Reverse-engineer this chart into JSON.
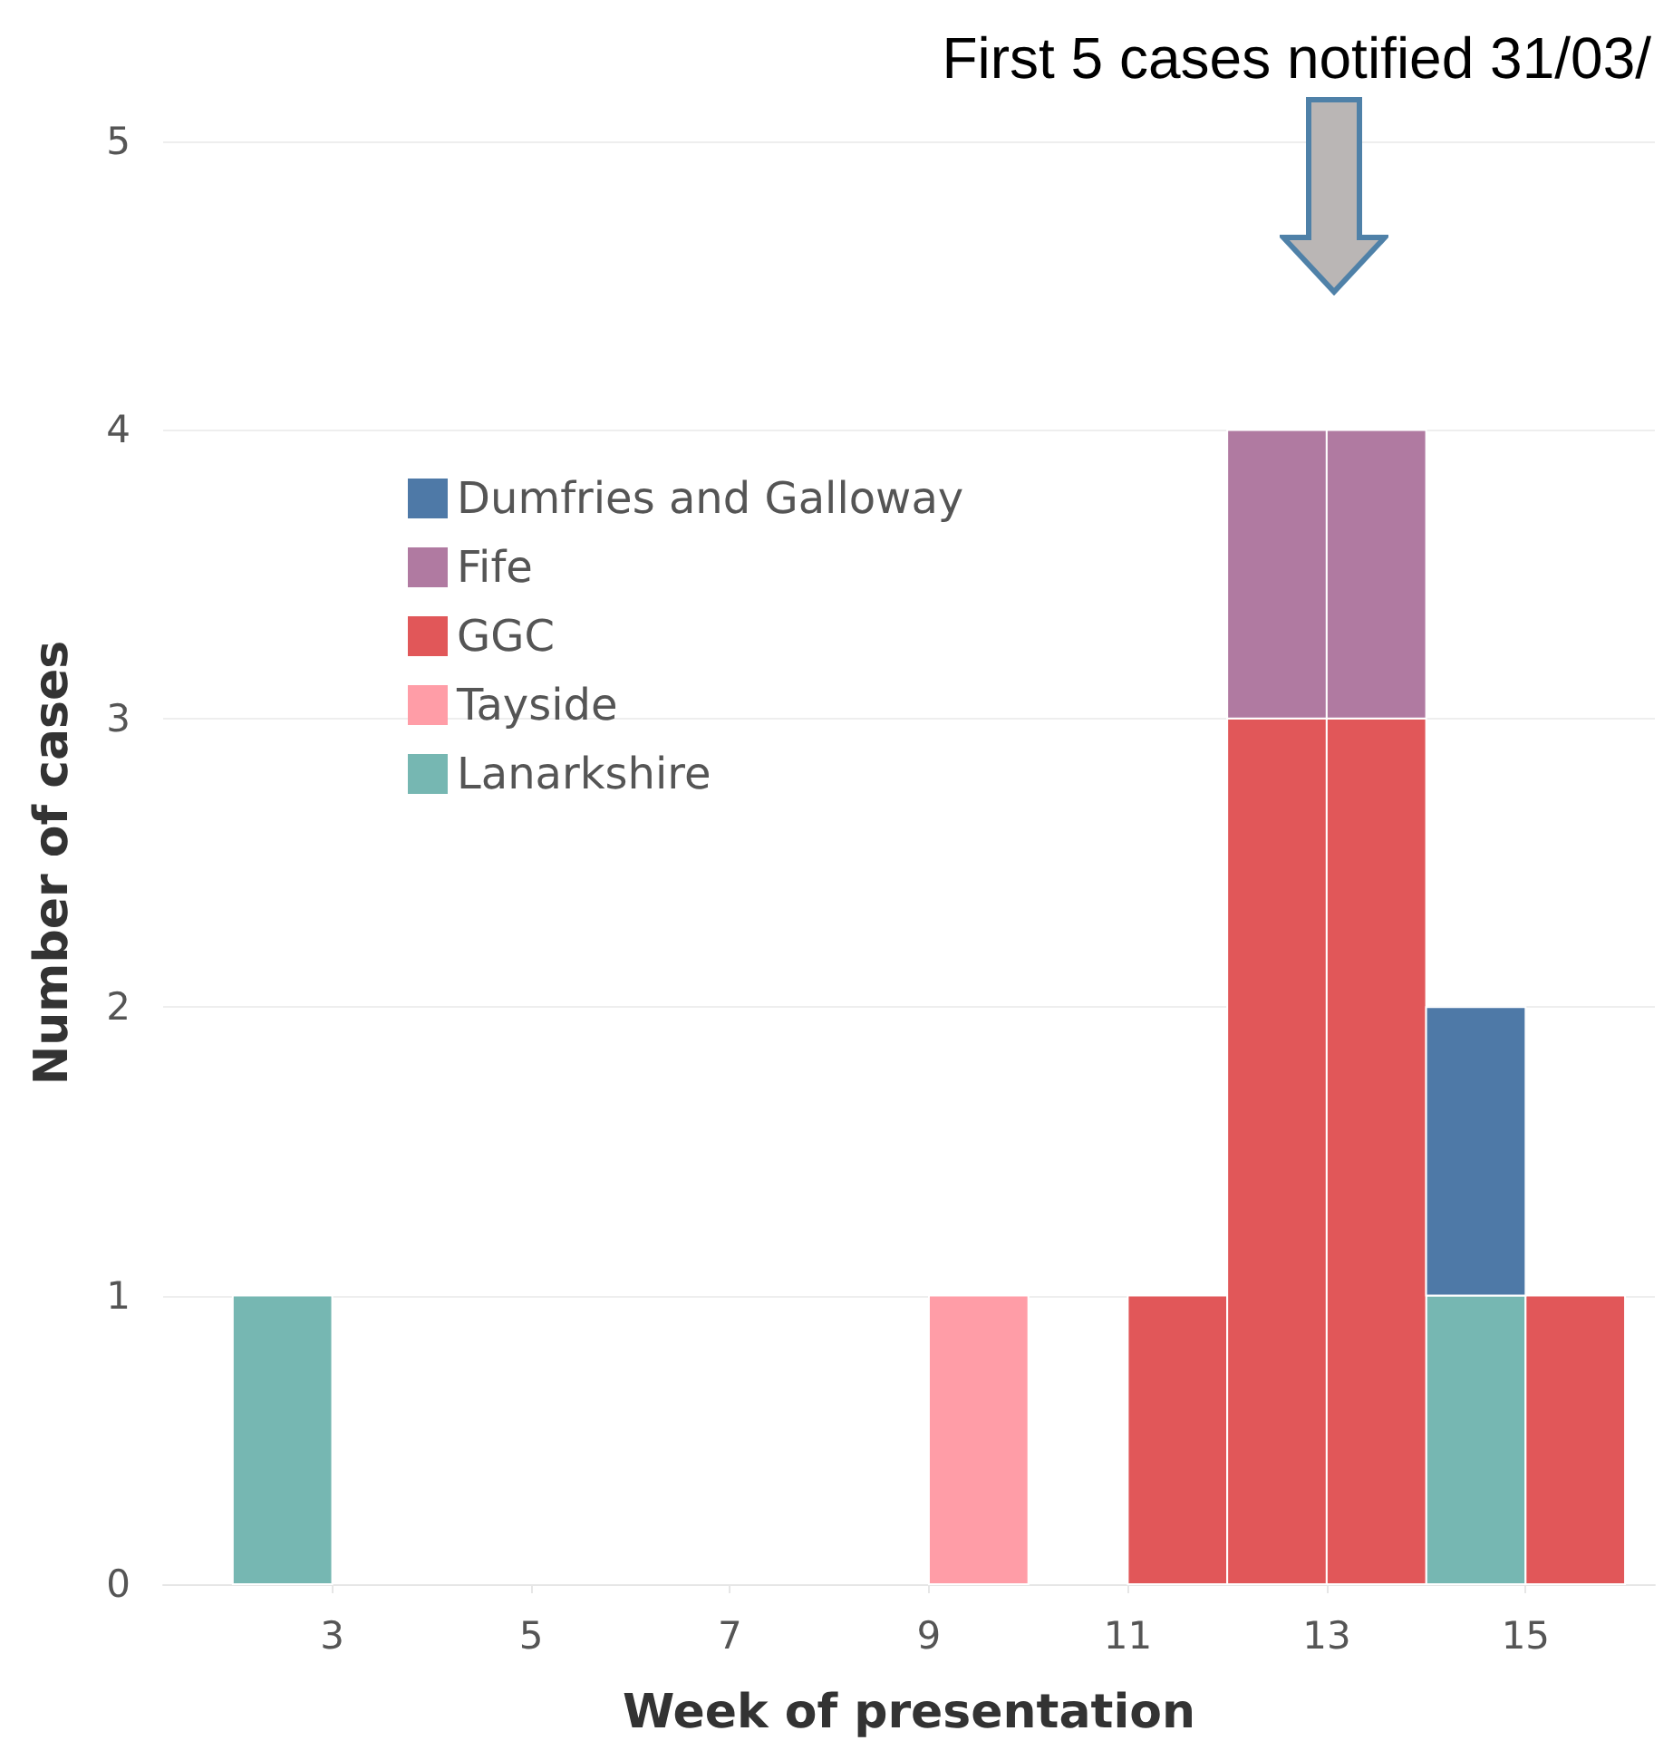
{
  "chart_data": {
    "type": "bar",
    "xlabel": "Week of presentation",
    "ylabel": "Number of cases",
    "annotations": [
      "First 5 cases notified 31/03/"
    ],
    "x": [
      2.5,
      9.5,
      11.5,
      12.5,
      13.5,
      14.5,
      15.5
    ],
    "stacked": true,
    "series": [
      {
        "name": "Lanarkshire",
        "color": "#76b7b2",
        "values": [
          1,
          null,
          null,
          null,
          null,
          1,
          null
        ]
      },
      {
        "name": "Tayside",
        "color": "#ff9da7",
        "values": [
          null,
          1,
          null,
          null,
          null,
          null,
          null
        ]
      },
      {
        "name": "GGC",
        "color": "#e15759",
        "values": [
          null,
          null,
          1,
          3,
          3,
          null,
          1
        ]
      },
      {
        "name": "Fife",
        "color": "#b07aa1",
        "values": [
          null,
          null,
          null,
          1,
          1,
          null,
          null
        ]
      },
      {
        "name": "Dumfries and Galloway",
        "color": "#4e79a7",
        "values": [
          null,
          null,
          null,
          null,
          null,
          1,
          null
        ]
      }
    ],
    "xlim": [
      1.3,
      16.3
    ],
    "xticks": [
      3,
      5,
      7,
      9,
      11,
      13,
      15
    ],
    "ylim": [
      0,
      5
    ],
    "yticks": [
      0,
      1,
      2,
      3,
      4,
      5
    ],
    "grid": "y",
    "legend": "top left"
  }
}
